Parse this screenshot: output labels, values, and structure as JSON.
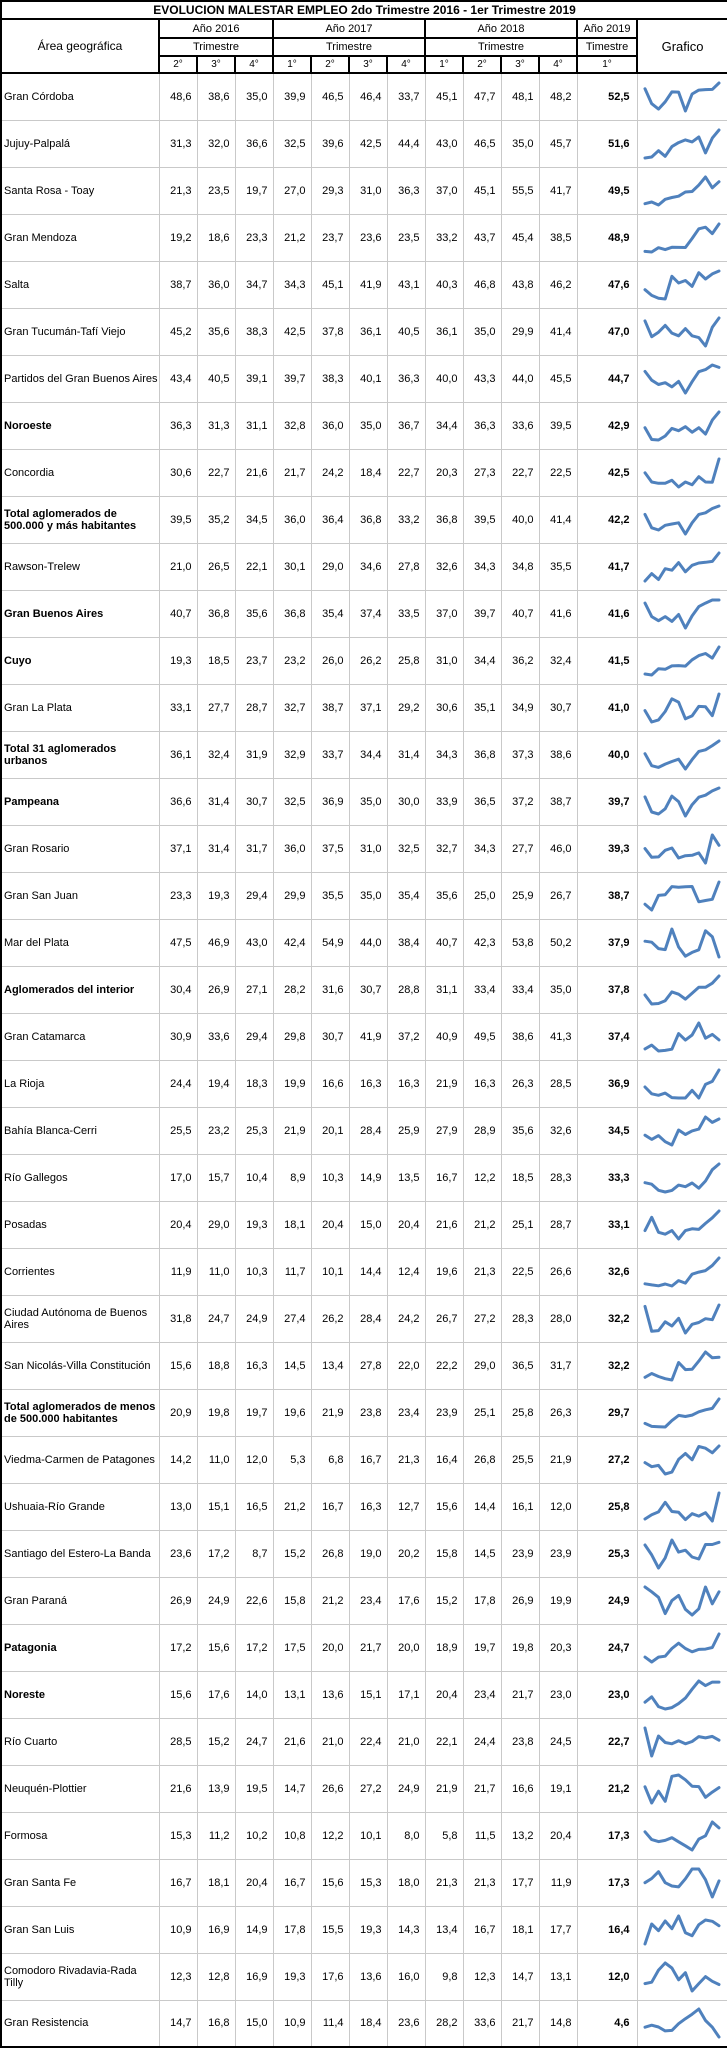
{
  "chart_data": {
    "type": "table",
    "title": "EVOLUCION MALESTAR EMPLEO 2do Trimestre 2016 - 1er Trimestre 2019",
    "area_column_label": "Área geográfica",
    "grafico_column_label": "Grafico",
    "year_groups": [
      {
        "year_label": "Año 2016",
        "trimestre_label": "Trimestre",
        "quarters": [
          "2°",
          "3°",
          "4°"
        ]
      },
      {
        "year_label": "Año 2017",
        "trimestre_label": "Trimestre",
        "quarters": [
          "1°",
          "2°",
          "3°",
          "4°"
        ]
      },
      {
        "year_label": "Año 2018",
        "trimestre_label": "Trimestre",
        "quarters": [
          "1°",
          "2°",
          "3°",
          "4°"
        ]
      },
      {
        "year_label": "Año 2019",
        "trimestre_label": "Timestre",
        "quarters": [
          "1°"
        ]
      }
    ],
    "sparkline": {
      "type": "line",
      "color": "#4f81bd",
      "per_row_scaling": true,
      "legend": false
    },
    "rows": [
      {
        "name": "Gran Córdoba",
        "bold": false,
        "values": [
          48.6,
          38.6,
          35.0,
          39.9,
          46.5,
          46.4,
          33.7,
          45.1,
          47.7,
          48.1,
          48.2,
          52.5
        ]
      },
      {
        "name": "Jujuy-Palpalá",
        "bold": false,
        "values": [
          31.3,
          32.0,
          36.6,
          32.5,
          39.6,
          42.5,
          44.4,
          43.0,
          46.5,
          35.0,
          45.7,
          51.6
        ]
      },
      {
        "name": "Santa Rosa - Toay",
        "bold": false,
        "values": [
          21.3,
          23.5,
          19.7,
          27.0,
          29.3,
          31.0,
          36.3,
          37.0,
          45.1,
          55.5,
          41.7,
          49.5
        ]
      },
      {
        "name": "Gran Mendoza",
        "bold": false,
        "values": [
          19.2,
          18.6,
          23.3,
          21.2,
          23.7,
          23.6,
          23.5,
          33.2,
          43.7,
          45.4,
          38.5,
          48.9
        ]
      },
      {
        "name": "Salta",
        "bold": false,
        "values": [
          38.7,
          36.0,
          34.7,
          34.3,
          45.1,
          41.9,
          43.1,
          40.3,
          46.8,
          43.8,
          46.2,
          47.6
        ]
      },
      {
        "name": "Gran Tucumán-Tafí Viejo",
        "bold": false,
        "values": [
          45.2,
          35.6,
          38.3,
          42.5,
          37.8,
          36.1,
          40.5,
          36.1,
          35.0,
          29.9,
          41.4,
          47.0
        ]
      },
      {
        "name": "Partidos del Gran Buenos Aires",
        "bold": false,
        "values": [
          43.4,
          40.5,
          39.1,
          39.7,
          38.3,
          40.1,
          36.3,
          40.0,
          43.3,
          44.0,
          45.5,
          44.7
        ]
      },
      {
        "name": "Noroeste",
        "bold": true,
        "values": [
          36.3,
          31.3,
          31.1,
          32.8,
          36.0,
          35.0,
          36.7,
          34.4,
          36.3,
          33.6,
          39.5,
          42.9
        ]
      },
      {
        "name": "Concordia",
        "bold": false,
        "values": [
          30.6,
          22.7,
          21.6,
          21.7,
          24.2,
          18.4,
          22.7,
          20.3,
          27.3,
          22.7,
          22.5,
          42.5
        ]
      },
      {
        "name": "Total aglomerados de 500.000 y más habitantes",
        "bold": true,
        "values": [
          39.5,
          35.2,
          34.5,
          36.0,
          36.4,
          36.8,
          33.2,
          36.8,
          39.5,
          40.0,
          41.4,
          42.2
        ]
      },
      {
        "name": "Rawson-Trelew",
        "bold": false,
        "values": [
          21.0,
          26.5,
          22.1,
          30.1,
          29.0,
          34.6,
          27.8,
          32.6,
          34.3,
          34.8,
          35.5,
          41.7
        ]
      },
      {
        "name": "Gran Buenos Aires",
        "bold": true,
        "values": [
          40.7,
          36.8,
          35.6,
          36.8,
          35.4,
          37.4,
          33.5,
          37.0,
          39.7,
          40.7,
          41.6,
          41.6
        ]
      },
      {
        "name": "Cuyo",
        "bold": true,
        "values": [
          19.3,
          18.5,
          23.7,
          23.2,
          26.0,
          26.2,
          25.8,
          31.0,
          34.4,
          36.2,
          32.4,
          41.5
        ]
      },
      {
        "name": "Gran La Plata",
        "bold": false,
        "values": [
          33.1,
          27.7,
          28.7,
          32.7,
          38.7,
          37.1,
          29.2,
          30.6,
          35.1,
          34.9,
          30.7,
          41.0
        ]
      },
      {
        "name": "Total 31 aglomerados urbanos",
        "bold": true,
        "values": [
          36.1,
          32.4,
          31.9,
          32.9,
          33.7,
          34.4,
          31.4,
          34.3,
          36.8,
          37.3,
          38.6,
          40.0
        ]
      },
      {
        "name": "Pampeana",
        "bold": true,
        "values": [
          36.6,
          31.4,
          30.7,
          32.5,
          36.9,
          35.0,
          30.0,
          33.9,
          36.5,
          37.2,
          38.7,
          39.7
        ]
      },
      {
        "name": "Gran Rosario",
        "bold": false,
        "values": [
          37.1,
          31.4,
          31.7,
          36.0,
          37.5,
          31.0,
          32.5,
          32.7,
          34.3,
          27.7,
          46.0,
          39.3
        ]
      },
      {
        "name": "Gran San Juan",
        "bold": false,
        "values": [
          23.3,
          19.3,
          29.4,
          29.9,
          35.5,
          35.0,
          35.4,
          35.6,
          25.0,
          25.9,
          26.7,
          38.7
        ]
      },
      {
        "name": "Mar del Plata",
        "bold": false,
        "values": [
          47.5,
          46.9,
          43.0,
          42.4,
          54.9,
          44.0,
          38.4,
          40.7,
          42.3,
          53.8,
          50.2,
          37.9
        ]
      },
      {
        "name": "Aglomerados del interior",
        "bold": true,
        "values": [
          30.4,
          26.9,
          27.1,
          28.2,
          31.6,
          30.7,
          28.8,
          31.1,
          33.4,
          33.4,
          35.0,
          37.8
        ]
      },
      {
        "name": "Gran Catamarca",
        "bold": false,
        "values": [
          30.9,
          33.6,
          29.4,
          29.8,
          30.7,
          41.9,
          37.2,
          40.9,
          49.5,
          38.6,
          41.3,
          37.4
        ]
      },
      {
        "name": "La Rioja",
        "bold": false,
        "values": [
          24.4,
          19.4,
          18.3,
          19.9,
          16.6,
          16.3,
          16.3,
          21.9,
          16.3,
          26.3,
          28.5,
          36.9
        ]
      },
      {
        "name": "Bahía Blanca-Cerri",
        "bold": false,
        "values": [
          25.5,
          23.2,
          25.3,
          21.9,
          20.1,
          28.4,
          25.9,
          27.9,
          28.9,
          35.6,
          32.6,
          34.5
        ]
      },
      {
        "name": "Río Gallegos",
        "bold": false,
        "values": [
          17.0,
          15.7,
          10.4,
          8.9,
          10.3,
          14.9,
          13.5,
          16.7,
          12.2,
          18.5,
          28.3,
          33.3
        ]
      },
      {
        "name": "Posadas",
        "bold": false,
        "values": [
          20.4,
          29.0,
          19.3,
          18.1,
          20.4,
          15.0,
          20.4,
          21.6,
          21.2,
          25.1,
          28.7,
          33.1
        ]
      },
      {
        "name": "Corrientes",
        "bold": false,
        "values": [
          11.9,
          11.0,
          10.3,
          11.7,
          10.1,
          14.4,
          12.4,
          19.6,
          21.3,
          22.5,
          26.6,
          32.6
        ]
      },
      {
        "name": "Ciudad Autónoma de Buenos Aires",
        "bold": false,
        "values": [
          31.8,
          24.7,
          24.9,
          27.4,
          26.2,
          28.4,
          24.2,
          26.7,
          27.2,
          28.3,
          28.0,
          32.2
        ]
      },
      {
        "name": "San Nicolás-Villa Constitución",
        "bold": false,
        "values": [
          15.6,
          18.8,
          16.3,
          14.5,
          13.4,
          27.8,
          22.0,
          22.2,
          29.0,
          36.5,
          31.7,
          32.2
        ]
      },
      {
        "name": "Total aglomerados de menos de 500.000 habitantes",
        "bold": true,
        "values": [
          20.9,
          19.8,
          19.7,
          19.6,
          21.9,
          23.8,
          23.4,
          23.9,
          25.1,
          25.8,
          26.3,
          29.7
        ]
      },
      {
        "name": "Viedma-Carmen de Patagones",
        "bold": false,
        "values": [
          14.2,
          11.0,
          12.0,
          5.3,
          6.8,
          16.7,
          21.3,
          16.4,
          26.8,
          25.5,
          21.9,
          27.2
        ]
      },
      {
        "name": "Ushuaia-Río Grande",
        "bold": false,
        "values": [
          13.0,
          15.1,
          16.5,
          21.2,
          16.7,
          16.3,
          12.7,
          15.6,
          14.4,
          16.1,
          12.0,
          25.8
        ]
      },
      {
        "name": "Santiago del Estero-La Banda",
        "bold": false,
        "values": [
          23.6,
          17.2,
          8.7,
          15.2,
          26.8,
          19.0,
          20.2,
          15.8,
          14.5,
          23.9,
          23.9,
          25.3
        ]
      },
      {
        "name": "Gran Paraná",
        "bold": false,
        "values": [
          26.9,
          24.9,
          22.6,
          15.8,
          21.2,
          23.4,
          17.6,
          15.2,
          17.8,
          26.9,
          19.9,
          24.9
        ]
      },
      {
        "name": "Patagonia",
        "bold": true,
        "values": [
          17.2,
          15.6,
          17.2,
          17.5,
          20.0,
          21.7,
          20.0,
          18.9,
          19.7,
          19.8,
          20.3,
          24.7
        ]
      },
      {
        "name": "Noreste",
        "bold": true,
        "values": [
          15.6,
          17.6,
          14.0,
          13.1,
          13.6,
          15.1,
          17.1,
          20.4,
          23.4,
          21.7,
          23.0,
          23.0
        ]
      },
      {
        "name": "Río Cuarto",
        "bold": false,
        "values": [
          28.5,
          15.2,
          24.7,
          21.6,
          21.0,
          22.4,
          21.0,
          22.1,
          24.4,
          23.8,
          24.5,
          22.7
        ]
      },
      {
        "name": "Neuquén-Plottier",
        "bold": false,
        "values": [
          21.6,
          13.9,
          19.5,
          14.7,
          26.6,
          27.2,
          24.9,
          21.9,
          21.7,
          16.6,
          19.1,
          21.2
        ]
      },
      {
        "name": "Formosa",
        "bold": false,
        "values": [
          15.3,
          11.2,
          10.2,
          10.8,
          12.2,
          10.1,
          8.0,
          5.8,
          11.5,
          13.2,
          20.4,
          17.3
        ]
      },
      {
        "name": "Gran Santa Fe",
        "bold": false,
        "values": [
          16.7,
          18.1,
          20.4,
          16.7,
          15.6,
          15.3,
          18.0,
          21.3,
          21.3,
          17.7,
          11.9,
          17.3
        ]
      },
      {
        "name": "Gran San Luis",
        "bold": false,
        "values": [
          10.9,
          16.9,
          14.9,
          17.8,
          15.5,
          19.3,
          14.3,
          13.4,
          16.7,
          18.1,
          17.7,
          16.4
        ]
      },
      {
        "name": "Comodoro Rivadavia-Rada Tilly",
        "bold": false,
        "values": [
          12.3,
          12.8,
          16.9,
          19.3,
          17.6,
          13.6,
          16.0,
          9.8,
          12.3,
          14.7,
          13.1,
          12.0
        ]
      },
      {
        "name": "Gran Resistencia",
        "bold": false,
        "values": [
          14.7,
          16.8,
          15.0,
          10.9,
          11.4,
          18.4,
          23.6,
          28.2,
          33.6,
          21.7,
          14.8,
          4.6
        ]
      }
    ]
  }
}
